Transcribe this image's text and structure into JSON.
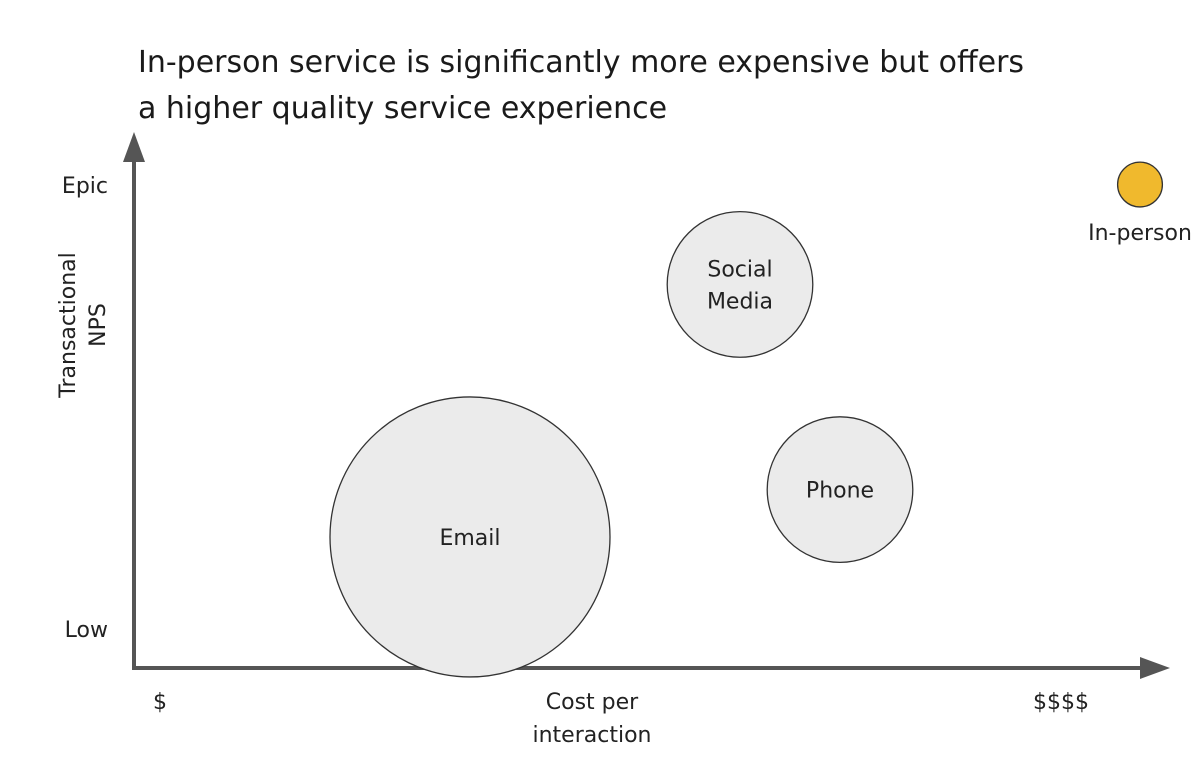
{
  "title_lines": [
    "In-person service is significantly more expensive but offers",
    "a higher quality service experience"
  ],
  "chart_data": {
    "type": "scatter",
    "title": "In-person service is significantly more expensive but offers a higher quality service experience",
    "x_axis": {
      "label_lines": [
        "Cost per",
        "interaction"
      ],
      "min_label": "$",
      "max_label": "$$$$",
      "range": [
        0,
        1
      ]
    },
    "y_axis": {
      "label_lines": [
        "Transactional",
        "NPS"
      ],
      "min_label": "Low",
      "max_label": "Epic",
      "range": [
        0,
        1
      ]
    },
    "grid": false,
    "legend": "none",
    "colors": {
      "bubble": "#ebebeb",
      "highlight": "#f0b92d",
      "axis": "#555555"
    },
    "points": [
      {
        "label_lines": [
          "Email"
        ],
        "x": 0.31,
        "y": 0.31,
        "size": 1.0,
        "color": "#ebebeb",
        "label_position": "center"
      },
      {
        "label_lines": [
          "Social",
          "Media"
        ],
        "x": 0.58,
        "y": 0.79,
        "size": 0.52,
        "color": "#ebebeb",
        "label_position": "center"
      },
      {
        "label_lines": [
          "Phone"
        ],
        "x": 0.68,
        "y": 0.4,
        "size": 0.52,
        "color": "#ebebeb",
        "label_position": "center"
      },
      {
        "label_lines": [
          "In-person"
        ],
        "x": 0.98,
        "y": 0.98,
        "size": 0.16,
        "color": "#f0b92d",
        "label_position": "below"
      }
    ]
  }
}
